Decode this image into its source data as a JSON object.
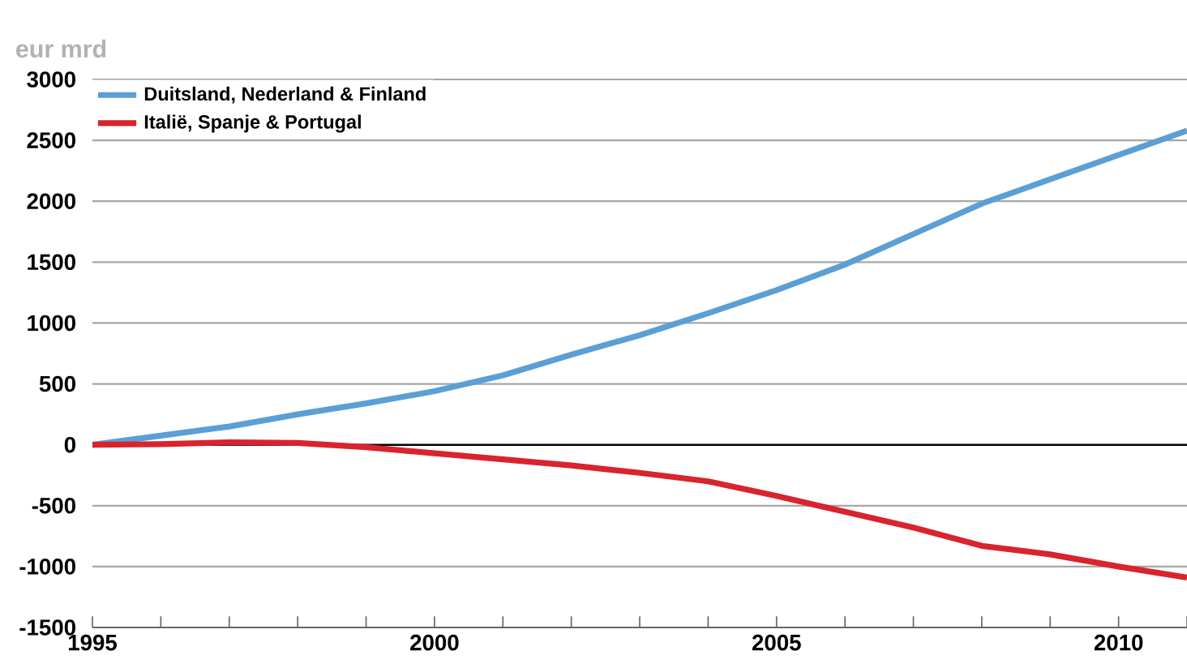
{
  "chart_data": {
    "type": "line",
    "ylabel": "eur mrd",
    "x": [
      1995,
      1996,
      1997,
      1998,
      1999,
      2000,
      2001,
      2002,
      2003,
      2004,
      2005,
      2006,
      2007,
      2008,
      2009,
      2010,
      2011
    ],
    "series": [
      {
        "name": "Duitsland, Nederland & Finland",
        "color": "#5b9fd4",
        "values": [
          0,
          75,
          150,
          250,
          340,
          440,
          570,
          740,
          900,
          1080,
          1270,
          1480,
          1730,
          1980,
          2180,
          2380,
          2580
        ]
      },
      {
        "name": "Italië, Spanje & Portugal",
        "color": "#d9232e",
        "values": [
          0,
          5,
          20,
          15,
          -20,
          -70,
          -120,
          -170,
          -230,
          -300,
          -420,
          -550,
          -680,
          -830,
          -900,
          -1000,
          -1090
        ]
      }
    ],
    "xlim": [
      1995,
      2011
    ],
    "xticks": [
      1995,
      {
        "value": 1996,
        "label": null
      },
      {
        "value": 1997,
        "label": null
      },
      {
        "value": 1998,
        "label": null
      },
      {
        "value": 1999,
        "label": null
      },
      2000,
      {
        "value": 2001,
        "label": null
      },
      {
        "value": 2002,
        "label": null
      },
      {
        "value": 2003,
        "label": null
      },
      {
        "value": 2004,
        "label": null
      },
      2005,
      {
        "value": 2006,
        "label": null
      },
      {
        "value": 2007,
        "label": null
      },
      {
        "value": 2008,
        "label": null
      },
      {
        "value": 2009,
        "label": null
      },
      2010,
      {
        "value": 2011,
        "label": null
      }
    ],
    "ylim": [
      -1500,
      3000
    ],
    "yticks": [
      -1500,
      -1000,
      -500,
      0,
      500,
      1000,
      1500,
      2000,
      2500,
      3000
    ],
    "grid": "y",
    "legend": "top left",
    "line_style": "solid"
  }
}
